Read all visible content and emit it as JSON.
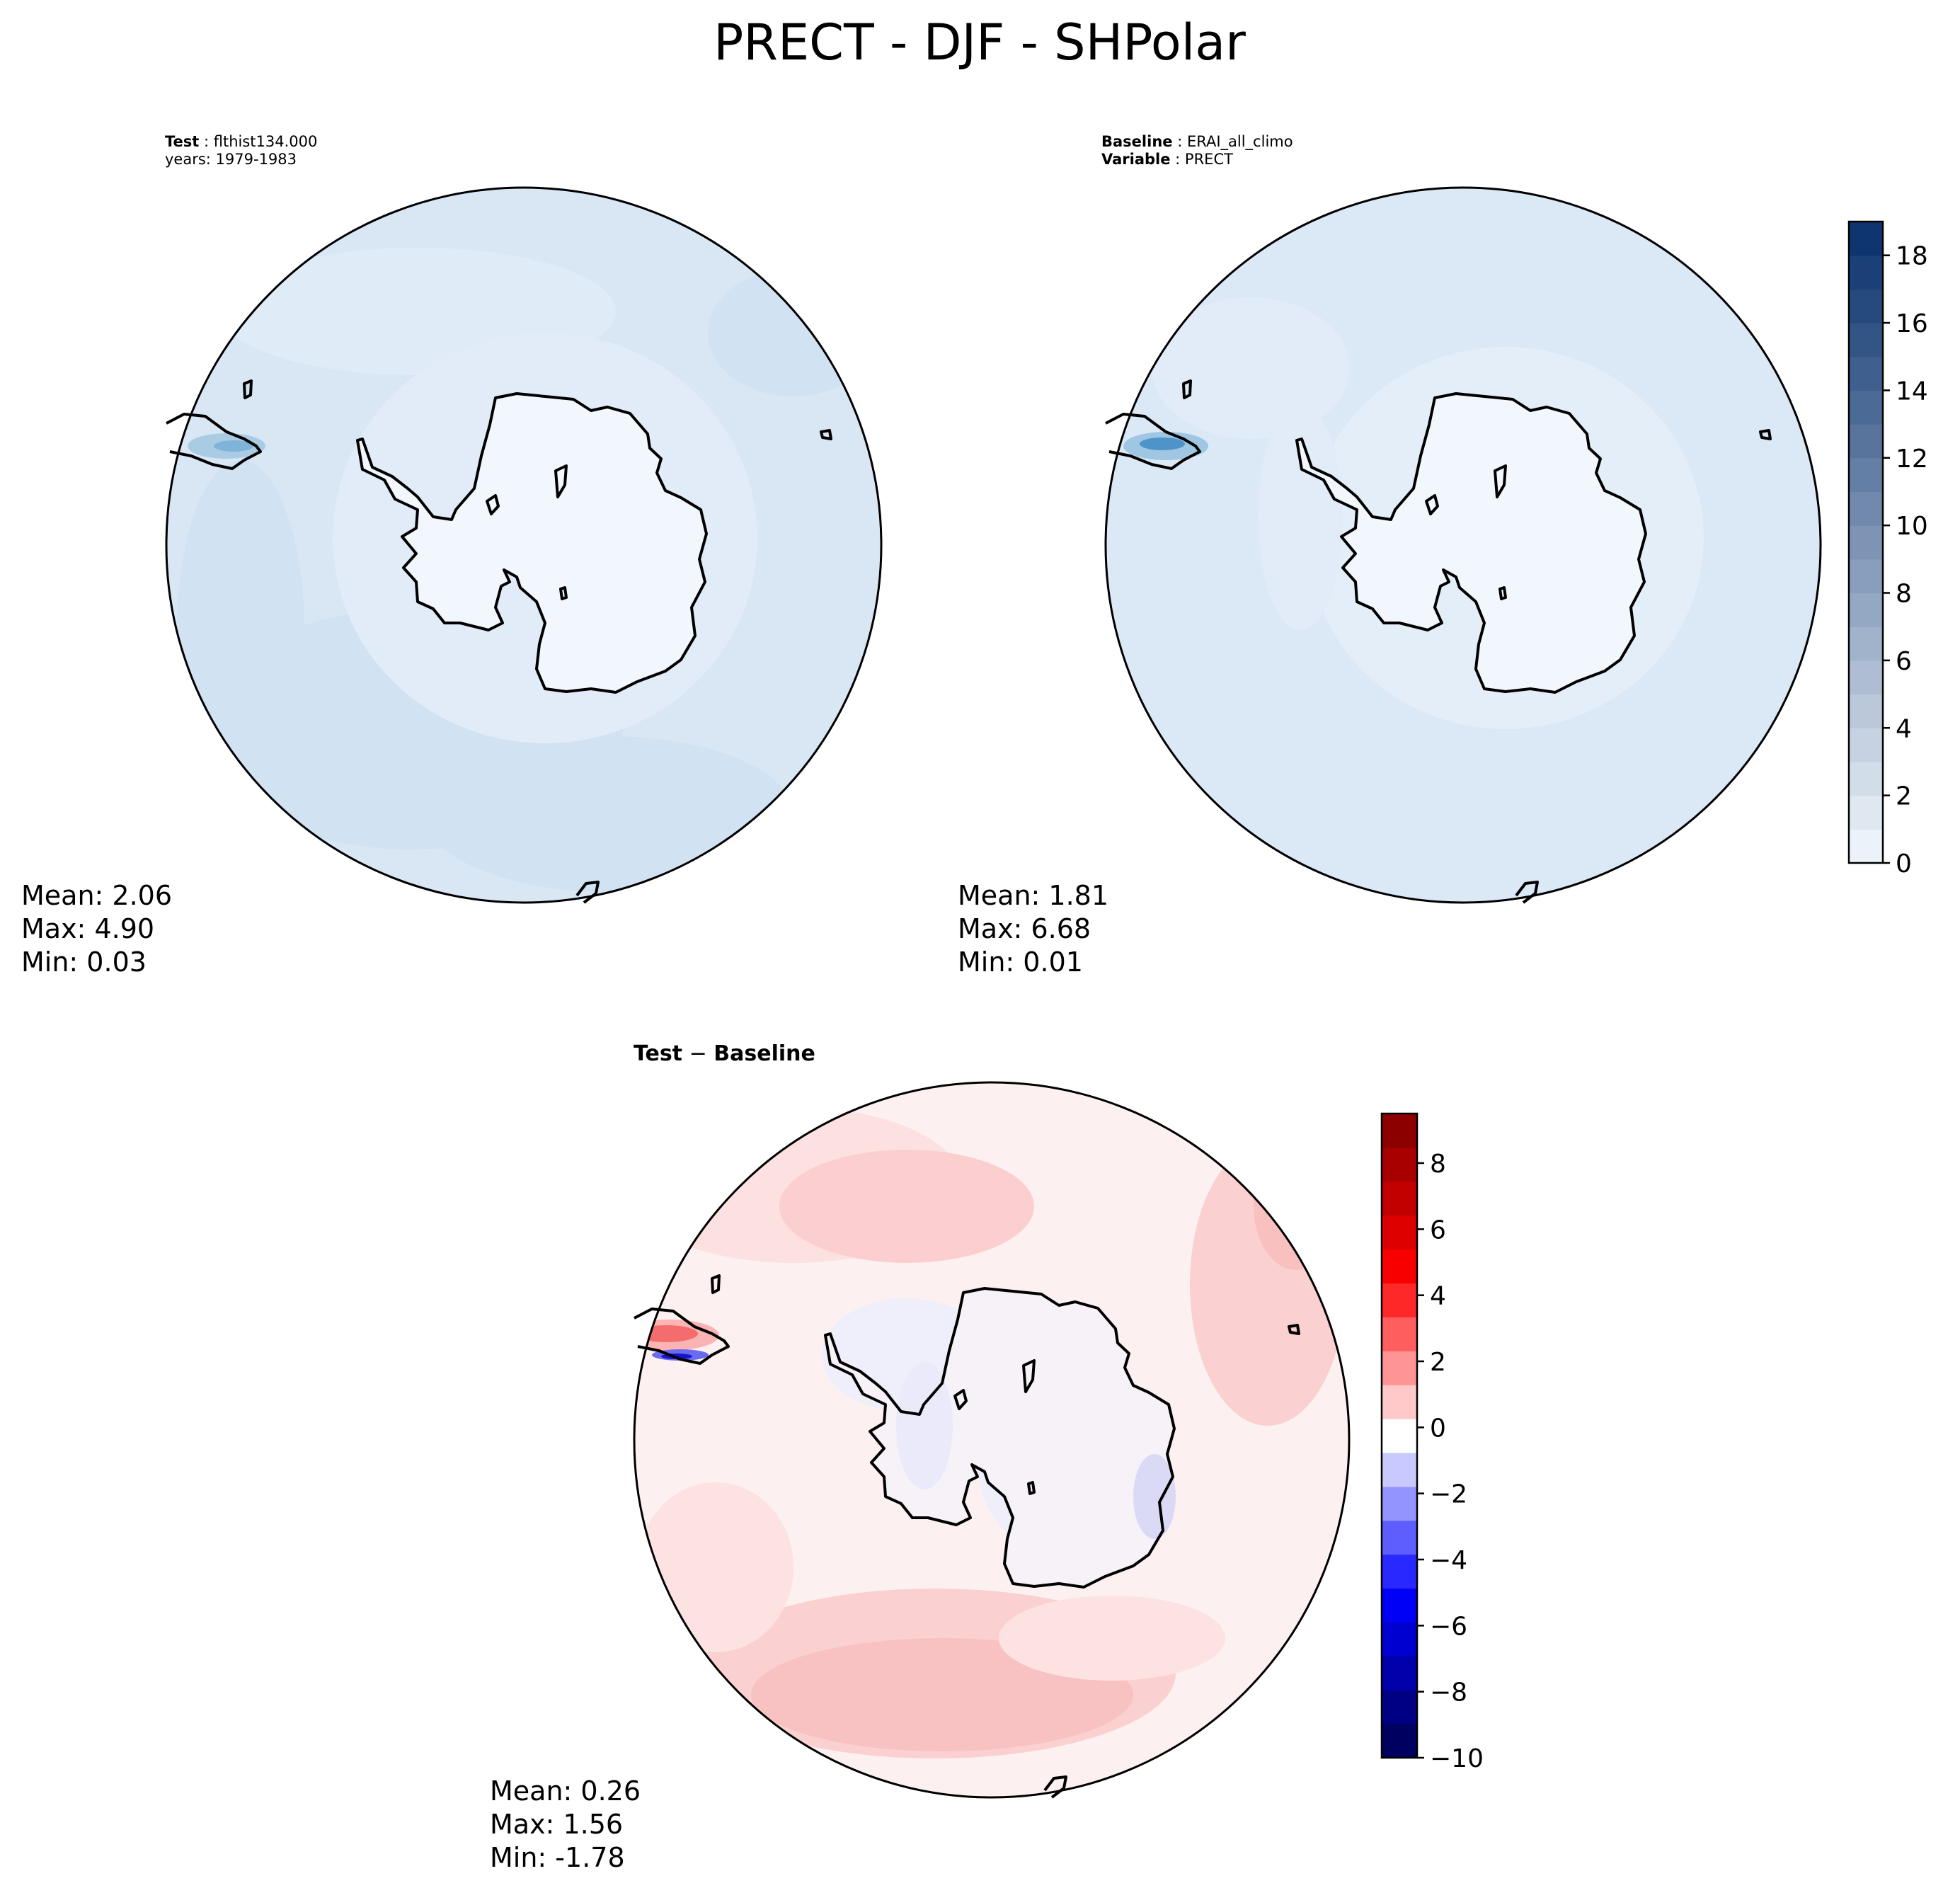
{
  "figure": {
    "title": "PRECT - DJF - SHPolar"
  },
  "panels": {
    "test": {
      "header_label": "Test",
      "header_value": "flthist134.000",
      "years": "years: 1979-1983",
      "mean": "Mean:  2.06",
      "max": "Max:  4.90",
      "min": "Min:  0.03"
    },
    "baseline": {
      "header_label": "Baseline",
      "header_value": "ERAI_all_climo",
      "variable_label": "Variable",
      "variable_value": "PRECT",
      "mean": "Mean:  1.81",
      "max": "Max:  6.68",
      "min": "Min:  0.01"
    },
    "diff": {
      "title_left": "Test",
      "title_op": " − ",
      "title_right": "Baseline",
      "mean": "Mean:  0.26",
      "max": "Max:  1.56",
      "min": "Min: -1.78"
    }
  },
  "colorbars": {
    "precip": {
      "colormap": "Blues",
      "ticks": [
        "0",
        "2",
        "4",
        "6",
        "8",
        "10",
        "12",
        "14",
        "16",
        "18"
      ],
      "range": [
        0,
        19
      ]
    },
    "difference": {
      "colormap": "seismic",
      "ticks": [
        "−10",
        "−8",
        "−6",
        "−4",
        "−2",
        "0",
        "2",
        "4",
        "6",
        "8"
      ],
      "range": [
        -10,
        9.5
      ]
    }
  },
  "colors": {
    "land": "#f1f7fd",
    "ocean_low": "#dce9f6",
    "ocean_mid": "#d0e2f2",
    "diff_pos": "#fde0e0",
    "diff_pos_strong": "#fbc3c3",
    "diff_neg": "#eeeefc",
    "diff_background": "#fdf0f0"
  }
}
